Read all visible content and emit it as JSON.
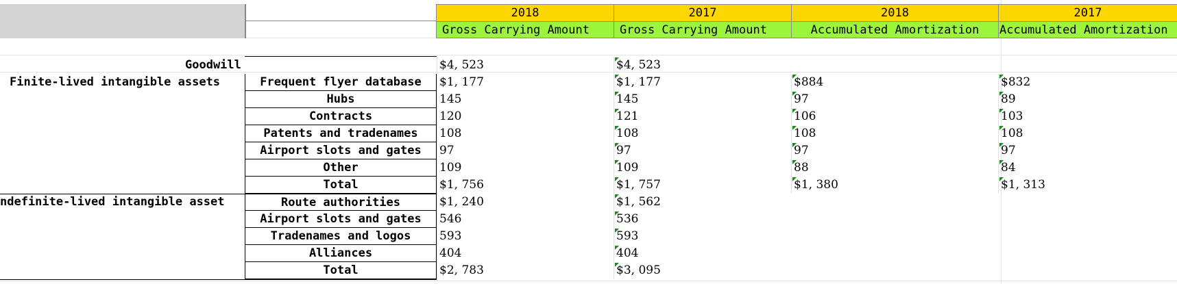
{
  "header": {
    "years": [
      "2018",
      "2017",
      "2018",
      "2017"
    ],
    "columns": [
      "Gross  Carrying Amount",
      "Gross  Carrying Amount",
      "Accumulated Amortization",
      "Accumulated Amortization"
    ]
  },
  "groups": {
    "goodwill": "Goodwill",
    "finite": "Finite-lived intangible assets",
    "indefinite": "ndefinite-lived intangible asset"
  },
  "rows": [
    {
      "label": "",
      "v": [
        "$4, 523",
        "$4, 523",
        "",
        ""
      ]
    },
    {
      "label": "Frequent flyer database",
      "v": [
        "$1, 177",
        "$1, 177",
        "$884",
        "$832"
      ]
    },
    {
      "label": "Hubs",
      "v": [
        "145",
        "145",
        "97",
        "89"
      ]
    },
    {
      "label": "Contracts",
      "v": [
        "120",
        "121",
        "106",
        "103"
      ]
    },
    {
      "label": "Patents and tradenames",
      "v": [
        "108",
        "108",
        "108",
        "108"
      ]
    },
    {
      "label": "Airport slots and gates",
      "v": [
        "97",
        "97",
        "97",
        "97"
      ]
    },
    {
      "label": "Other",
      "v": [
        "109",
        "109",
        "88",
        "84"
      ]
    },
    {
      "label": "Total",
      "v": [
        "$1, 756",
        "$1, 757",
        "$1, 380",
        "$1, 313"
      ]
    },
    {
      "label": "Route authorities",
      "v": [
        "$1, 240",
        "$1, 562",
        "",
        ""
      ]
    },
    {
      "label": "Airport slots and gates",
      "v": [
        "546",
        "536",
        "",
        ""
      ]
    },
    {
      "label": "Tradenames and logos",
      "v": [
        "593",
        "593",
        "",
        ""
      ]
    },
    {
      "label": "Alliances",
      "v": [
        "404",
        "404",
        "",
        ""
      ]
    },
    {
      "label": "Total",
      "v": [
        "$2, 783",
        "$3, 095",
        "",
        ""
      ]
    }
  ]
}
